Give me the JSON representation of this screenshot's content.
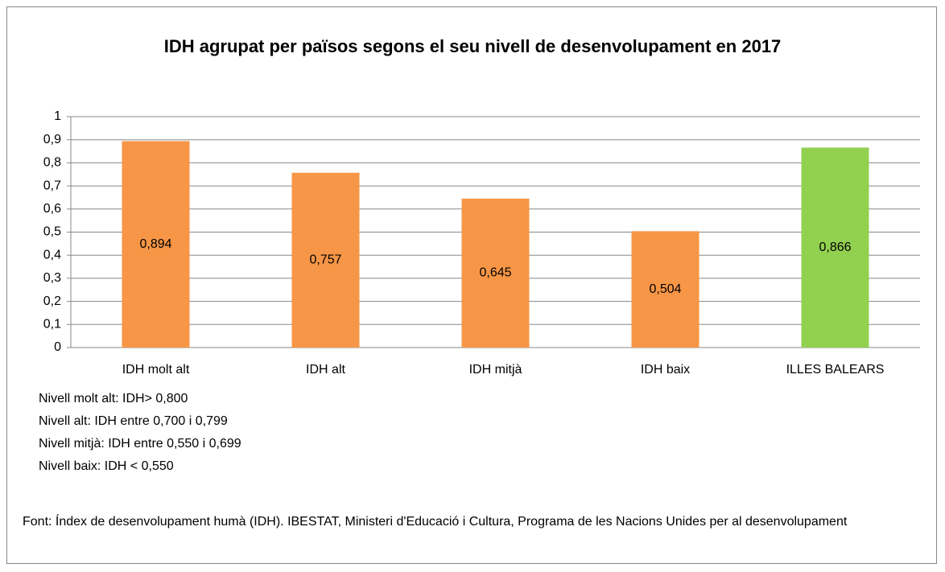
{
  "chart_data": {
    "type": "bar",
    "title": "IDH  agrupat per països segons el seu nivell de desenvolupament en 2017",
    "categories": [
      "IDH molt alt",
      "IDH alt",
      "IDH mitjà",
      "IDH baix",
      "ILLES BALEARS"
    ],
    "values": [
      0.894,
      0.757,
      0.645,
      0.504,
      0.866
    ],
    "value_labels": [
      "0,894",
      "0,757",
      "0,645",
      "0,504",
      "0,866"
    ],
    "colors": [
      "#f79646",
      "#f79646",
      "#f79646",
      "#f79646",
      "#92d050"
    ],
    "ylim": [
      0,
      1
    ],
    "yticks": [
      0,
      {
        "value": 0.1,
        "label": "0,1"
      },
      {
        "value": 0.2,
        "label": "0,2"
      },
      {
        "value": 0.3,
        "label": "0,3"
      },
      {
        "value": 0.4,
        "label": "0,4"
      },
      {
        "value": 0.5,
        "label": "0,5"
      },
      {
        "value": 0.6,
        "label": "0,6"
      },
      {
        "value": 0.7,
        "label": "0,7"
      },
      {
        "value": 0.8,
        "label": "0,8"
      },
      {
        "value": 0.9,
        "label": "0,9"
      },
      1
    ],
    "grid": true,
    "notes": [
      "Nivell molt alt: IDH> 0,800",
      "Nivell alt: IDH entre 0,700 i 0,799",
      "Nivell mitjà: IDH entre 0,550 i 0,699",
      "Nivell baix: IDH < 0,550"
    ],
    "source": "Font: Índex de desenvolupament humà (IDH). IBESTAT, Ministeri d'Educació i Cultura, Programa de les Nacions Unides per al desenvolupament"
  }
}
